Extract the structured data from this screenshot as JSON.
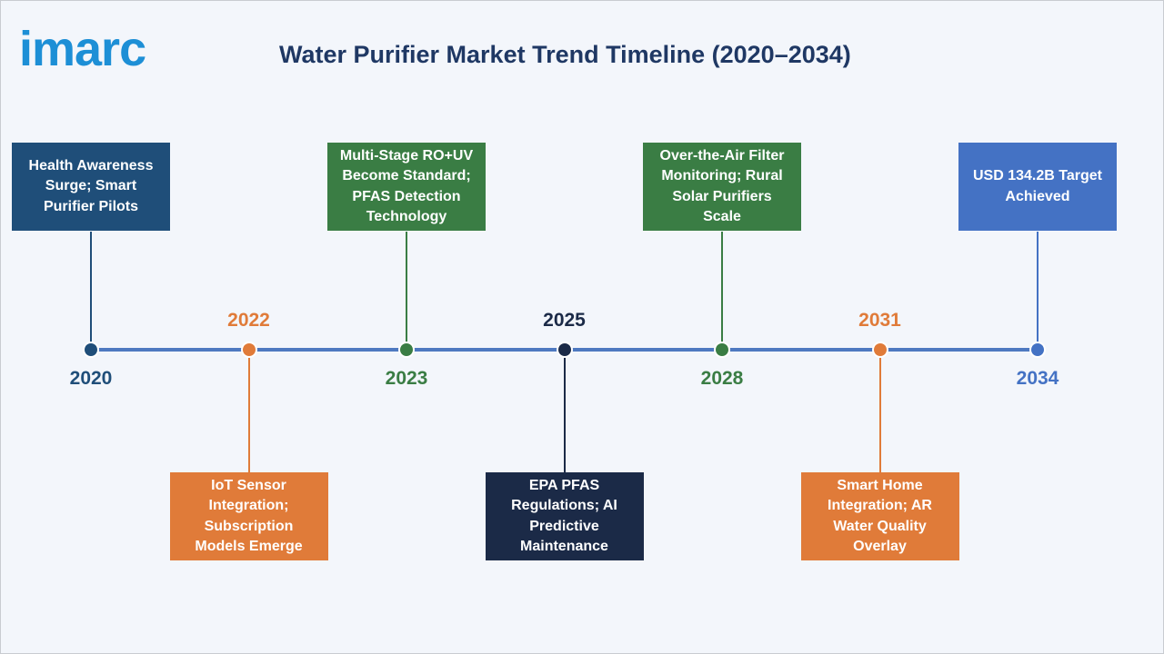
{
  "header": {
    "logo": "imarc",
    "title": "Water Purifier Market Trend Timeline (2020–2034)"
  },
  "events": [
    {
      "year": "2020",
      "label": "Health Awareness Surge; Smart Purifier Pilots",
      "color": "#1f4e79"
    },
    {
      "year": "2022",
      "label": "IoT Sensor Integration; Subscription Models Emerge",
      "color": "#e07b39"
    },
    {
      "year": "2023",
      "label": "Multi-Stage RO+UV Become Standard; PFAS Detection Technology",
      "color": "#3a7d44"
    },
    {
      "year": "2025",
      "label": "EPA PFAS Regulations; AI Predictive Maintenance",
      "color": "#1b2a47"
    },
    {
      "year": "2028",
      "label": "Over-the-Air Filter Monitoring; Rural Solar Purifiers Scale",
      "color": "#3a7d44"
    },
    {
      "year": "2031",
      "label": "Smart Home Integration; AR Water Quality Overlay",
      "color": "#e07b39"
    },
    {
      "year": "2034",
      "label": "USD 134.2B Target Achieved",
      "color": "#4472c4"
    }
  ]
}
